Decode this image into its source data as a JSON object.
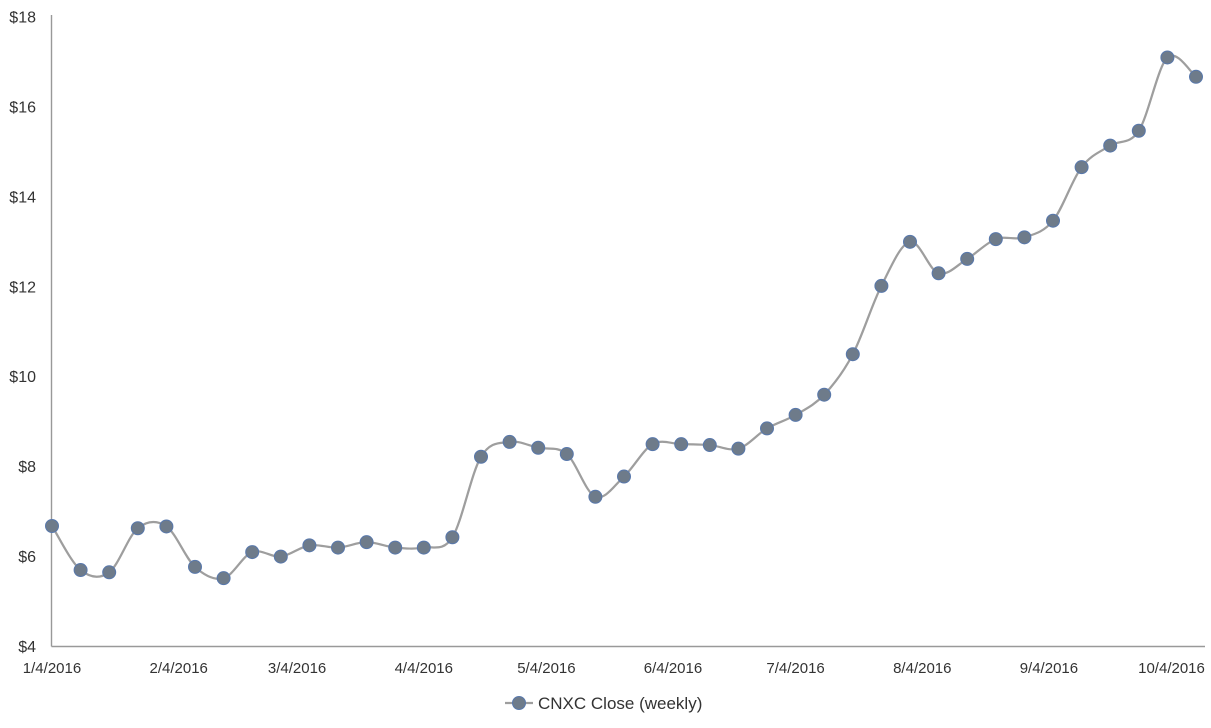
{
  "chart_data": {
    "type": "line",
    "title": "",
    "legend": "CNXC Close (weekly)",
    "legend_position": "bottom-center",
    "grid": false,
    "smooth_line": true,
    "colors": {
      "line": "#9e9e9e",
      "marker_fill": "#6e7b8a",
      "marker_stroke": "#5878ac",
      "axis_line": "#999999",
      "text": "#333333",
      "background": "#ffffff"
    },
    "y_axis": {
      "prefix": "$",
      "min": 4,
      "max": 18,
      "step": 2,
      "tick_labels": [
        "$4",
        "$6",
        "$8",
        "$10",
        "$12",
        "$14",
        "$16",
        "$18"
      ],
      "tick_values": [
        4,
        6,
        8,
        10,
        12,
        14,
        16,
        18
      ]
    },
    "x_axis": {
      "kind": "date",
      "tick_labels": [
        "1/4/2016",
        "2/4/2016",
        "3/4/2016",
        "4/4/2016",
        "5/4/2016",
        "6/4/2016",
        "7/4/2016",
        "8/4/2016",
        "9/4/2016",
        "10/4/2016"
      ],
      "tick_day_offsets": [
        0,
        31,
        60,
        91,
        121,
        152,
        182,
        213,
        244,
        274
      ],
      "axis_day_span": 282
    },
    "series": [
      {
        "name": "CNXC Close (weekly)",
        "point_day_offsets": [
          0,
          7,
          14,
          21,
          28,
          35,
          42,
          49,
          56,
          63,
          70,
          77,
          84,
          91,
          98,
          105,
          112,
          119,
          126,
          133,
          140,
          147,
          154,
          161,
          168,
          175,
          182,
          189,
          196,
          203,
          210,
          217,
          224,
          231,
          238,
          245,
          252,
          259,
          266,
          273,
          280
        ],
        "values": [
          6.68,
          5.7,
          5.65,
          6.63,
          6.67,
          5.77,
          5.52,
          6.1,
          6.0,
          6.25,
          6.2,
          6.32,
          6.2,
          6.2,
          6.43,
          8.22,
          8.55,
          8.42,
          8.28,
          7.33,
          7.78,
          8.5,
          8.5,
          8.48,
          8.4,
          8.85,
          9.15,
          9.6,
          10.5,
          12.02,
          13.0,
          12.3,
          12.62,
          13.06,
          13.1,
          13.47,
          14.66,
          15.14,
          15.47,
          17.1,
          16.67
        ]
      }
    ]
  }
}
